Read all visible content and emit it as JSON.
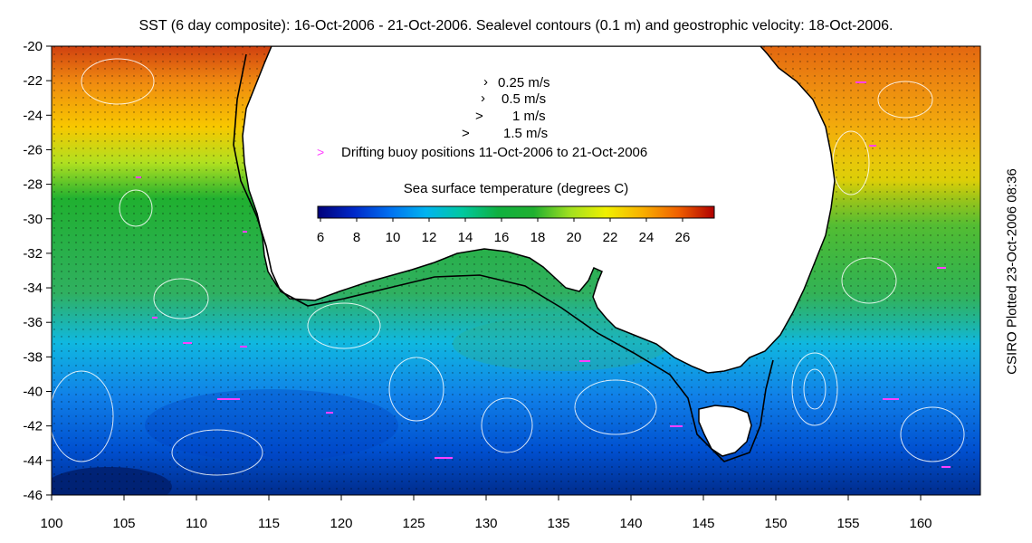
{
  "title": "SST (6 day composite): 16-Oct-2006 - 21-Oct-2006. Sealevel contours (0.1 m) and geostrophic velocity: 18-Oct-2006.",
  "side_label": "CSIRO Plotted 23-Oct-2006 08:36",
  "axes": {
    "x_ticks": [
      "100",
      "105",
      "110",
      "115",
      "120",
      "125",
      "130",
      "135",
      "140",
      "145",
      "150",
      "155",
      "160"
    ],
    "y_ticks": [
      "-20",
      "-22",
      "-24",
      "-26",
      "-28",
      "-30",
      "-32",
      "-34",
      "-36",
      "-38",
      "-40",
      "-42",
      "-44",
      "-46"
    ],
    "lon_range": [
      100,
      164
    ],
    "lat_range": [
      -46,
      -20
    ]
  },
  "velocity_legend": [
    "0.25 m/s",
    "0.5 m/s",
    "1 m/s",
    "1.5 m/s"
  ],
  "buoy_legend": "Drifting buoy positions 11-Oct-2006 to 21-Oct-2006",
  "colorbar": {
    "title": "Sea surface temperature (degrees C)",
    "ticks": [
      "6",
      "8",
      "10",
      "12",
      "14",
      "16",
      "18",
      "20",
      "22",
      "24",
      "26"
    ],
    "colors": [
      "#00007a",
      "#0028c8",
      "#0070f0",
      "#00b4f0",
      "#00c8a0",
      "#10b040",
      "#20b030",
      "#a0e020",
      "#f0f000",
      "#f8b000",
      "#f06000",
      "#b00000"
    ]
  },
  "colors": {
    "land": "#ffffff",
    "coastline": "#000000",
    "contour": "#ffffff",
    "buoy": "#ff40ff"
  }
}
